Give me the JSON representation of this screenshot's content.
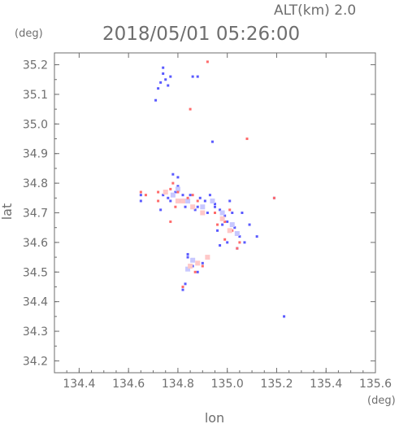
{
  "chart_data": {
    "type": "scatter",
    "title": "2018/05/01 05:26:00",
    "subtitle": "ALT(km) 2.0",
    "xlabel": "lon",
    "ylabel": "lat",
    "xunit": "(deg)",
    "yunit": "(deg)",
    "xlim": [
      134.3,
      135.6
    ],
    "ylim": [
      34.16,
      35.24
    ],
    "xticks": [
      "134.4",
      "134.6",
      "134.8",
      "135.0",
      "135.2",
      "135.4",
      "135.6"
    ],
    "yticks": [
      "34.2",
      "34.3",
      "34.4",
      "34.5",
      "34.6",
      "34.7",
      "34.8",
      "34.9",
      "35.0",
      "35.1",
      "35.2"
    ],
    "grid": false,
    "colors": {
      "positive": "#ff6a6a",
      "positive_light": "#ffc8c8",
      "negative": "#5a5aff",
      "negative_light": "#c8c8ff"
    },
    "series": [
      {
        "color": "negative",
        "points": [
          [
            134.74,
            35.17
          ],
          [
            134.75,
            35.15
          ],
          [
            134.73,
            35.14
          ],
          [
            134.76,
            35.13
          ],
          [
            134.72,
            35.12
          ],
          [
            134.77,
            35.16
          ],
          [
            134.74,
            35.19
          ],
          [
            134.86,
            35.16
          ],
          [
            134.88,
            35.16
          ],
          [
            134.94,
            34.94
          ],
          [
            134.65,
            34.76
          ],
          [
            134.65,
            34.74
          ],
          [
            134.74,
            34.76
          ],
          [
            134.76,
            34.75
          ],
          [
            134.79,
            34.77
          ],
          [
            134.81,
            34.74
          ],
          [
            134.83,
            34.72
          ],
          [
            134.85,
            34.76
          ],
          [
            134.87,
            34.71
          ],
          [
            134.89,
            34.75
          ],
          [
            134.91,
            34.74
          ],
          [
            134.93,
            34.76
          ],
          [
            134.95,
            34.73
          ],
          [
            134.97,
            34.71
          ],
          [
            134.99,
            34.69
          ],
          [
            135.01,
            34.74
          ],
          [
            135.02,
            34.7
          ],
          [
            135.0,
            34.67
          ],
          [
            135.03,
            34.65
          ],
          [
            135.05,
            34.62
          ],
          [
            135.07,
            34.6
          ],
          [
            135.04,
            34.58
          ],
          [
            135.0,
            34.6
          ],
          [
            134.97,
            34.59
          ],
          [
            134.96,
            34.64
          ],
          [
            134.98,
            34.66
          ],
          [
            135.06,
            34.7
          ],
          [
            134.92,
            34.7
          ],
          [
            134.88,
            34.72
          ],
          [
            134.84,
            34.55
          ],
          [
            134.86,
            34.52
          ],
          [
            134.88,
            34.5
          ],
          [
            134.9,
            34.53
          ],
          [
            134.83,
            34.46
          ],
          [
            134.82,
            34.44
          ],
          [
            134.84,
            34.56
          ],
          [
            134.78,
            34.83
          ],
          [
            134.8,
            34.82
          ],
          [
            134.71,
            35.08
          ],
          [
            134.77,
            34.74
          ],
          [
            135.09,
            34.66
          ],
          [
            135.12,
            34.62
          ],
          [
            135.23,
            34.35
          ],
          [
            135.19,
            34.75
          ],
          [
            134.95,
            34.72
          ],
          [
            134.8,
            34.79
          ],
          [
            134.82,
            34.76
          ],
          [
            134.73,
            34.71
          ]
        ]
      },
      {
        "color": "negative_light",
        "points": [
          [
            134.8,
            34.78
          ],
          [
            134.84,
            34.74
          ],
          [
            134.9,
            34.72
          ],
          [
            134.94,
            34.74
          ],
          [
            134.98,
            34.7
          ],
          [
            135.02,
            34.66
          ],
          [
            135.04,
            34.63
          ],
          [
            134.86,
            34.54
          ],
          [
            134.84,
            34.51
          ],
          [
            134.78,
            34.76
          ]
        ]
      },
      {
        "color": "positive",
        "points": [
          [
            134.92,
            35.21
          ],
          [
            134.65,
            34.77
          ],
          [
            134.67,
            34.76
          ],
          [
            134.72,
            34.77
          ],
          [
            134.77,
            34.78
          ],
          [
            134.78,
            34.8
          ],
          [
            134.8,
            34.77
          ],
          [
            134.84,
            34.75
          ],
          [
            134.88,
            34.74
          ],
          [
            134.77,
            34.67
          ],
          [
            134.95,
            34.7
          ],
          [
            134.99,
            34.67
          ],
          [
            135.02,
            34.64
          ],
          [
            134.99,
            34.61
          ],
          [
            135.04,
            34.58
          ],
          [
            135.05,
            34.6
          ],
          [
            134.87,
            34.5
          ],
          [
            134.9,
            34.52
          ],
          [
            134.82,
            34.45
          ],
          [
            134.85,
            35.05
          ],
          [
            135.08,
            34.95
          ],
          [
            134.72,
            34.74
          ],
          [
            134.86,
            34.76
          ],
          [
            135.01,
            34.71
          ],
          [
            134.96,
            34.66
          ],
          [
            134.79,
            34.72
          ],
          [
            135.19,
            34.75
          ]
        ]
      },
      {
        "color": "positive_light",
        "points": [
          [
            134.82,
            34.74
          ],
          [
            134.86,
            34.72
          ],
          [
            134.9,
            34.7
          ],
          [
            134.98,
            34.68
          ],
          [
            135.01,
            34.64
          ],
          [
            134.88,
            34.53
          ],
          [
            134.85,
            34.52
          ],
          [
            134.92,
            34.55
          ],
          [
            134.8,
            34.74
          ],
          [
            134.75,
            34.77
          ]
        ]
      }
    ]
  }
}
